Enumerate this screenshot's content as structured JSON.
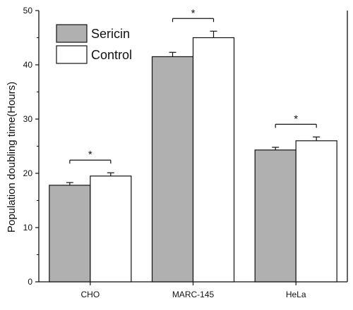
{
  "chart_data": {
    "type": "bar",
    "categories": [
      "CHO",
      "MARC-145",
      "HeLa"
    ],
    "series": [
      {
        "name": "Sericin",
        "values": [
          17.8,
          41.5,
          24.3
        ],
        "errors": [
          0.5,
          0.8,
          0.5
        ],
        "color": "#b0b0b0"
      },
      {
        "name": "Control",
        "values": [
          19.5,
          45.0,
          26.0
        ],
        "errors": [
          0.6,
          1.2,
          0.7
        ],
        "color": "#ffffff"
      }
    ],
    "xlabel": "",
    "ylabel": "Population doubling time(Hours)",
    "ylim": [
      0,
      50
    ],
    "yticks": [
      0,
      10,
      20,
      30,
      40,
      50
    ],
    "legend_position": "top-left",
    "grid": false,
    "significance": [
      "*",
      "*",
      "*"
    ]
  }
}
